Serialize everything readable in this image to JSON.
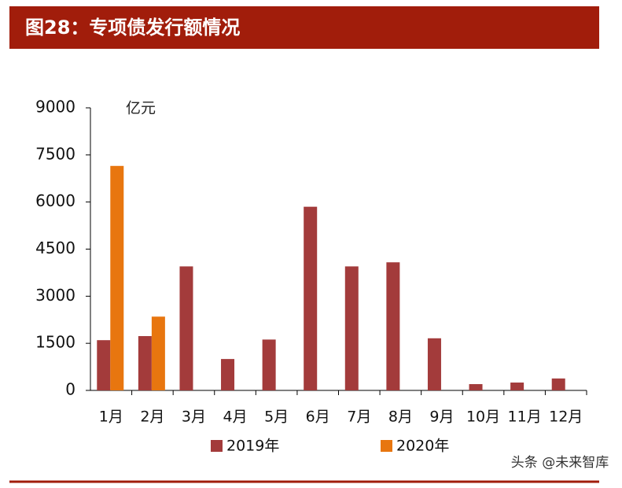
{
  "title": "图28：专项债发行额情况",
  "watermark": "头条 @未来智库",
  "chart_data": {
    "type": "bar",
    "y_label": "亿元",
    "categories": [
      "1月",
      "2月",
      "3月",
      "4月",
      "5月",
      "6月",
      "7月",
      "8月",
      "9月",
      "10月",
      "11月",
      "12月"
    ],
    "series": [
      {
        "name": "2019年",
        "color": "#a33b3b",
        "values": [
          1600,
          1730,
          3950,
          1000,
          1620,
          5850,
          3950,
          4080,
          1660,
          200,
          250,
          380
        ]
      },
      {
        "name": "2020年",
        "color": "#e8760f",
        "values": [
          7150,
          2350,
          null,
          null,
          null,
          null,
          null,
          null,
          null,
          null,
          null,
          null
        ]
      }
    ],
    "ylim": [
      0,
      9000
    ],
    "yticks": [
      0,
      1500,
      3000,
      4500,
      6000,
      7500,
      9000
    ]
  }
}
